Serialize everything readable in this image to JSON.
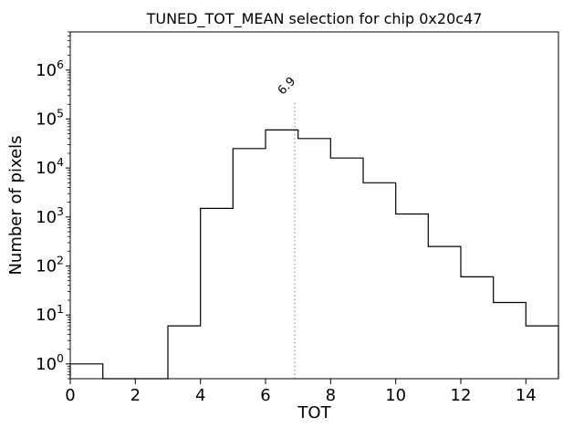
{
  "chart_data": {
    "type": "bar",
    "subtype": "step-histogram",
    "title": "TUNED_TOT_MEAN selection for chip 0x20c47",
    "xlabel": "TOT",
    "ylabel": "Number of pixels",
    "yscale": "log",
    "xlim": [
      0,
      15
    ],
    "ylim": [
      0.5,
      6000000
    ],
    "bin_edges": [
      0,
      1,
      2,
      3,
      4,
      5,
      6,
      7,
      8,
      9,
      10,
      11,
      12,
      13,
      14,
      15
    ],
    "counts": [
      1,
      0,
      0,
      6,
      1500,
      25000,
      60000,
      40000,
      16000,
      5000,
      1150,
      250,
      60,
      18,
      6
    ],
    "xticks": [
      0,
      2,
      4,
      6,
      8,
      10,
      12,
      14
    ],
    "ytick_exponents": [
      0,
      1,
      2,
      3,
      4,
      5,
      6
    ],
    "grid": false,
    "legend": null,
    "vline": {
      "x": 6.9,
      "label": "6.9",
      "style": "dotted"
    },
    "colors": {
      "step_line": "#000000",
      "vline": "#8c8c8c",
      "annotation": "#8c8c8c",
      "axes": "#000000",
      "background": "#ffffff"
    }
  }
}
